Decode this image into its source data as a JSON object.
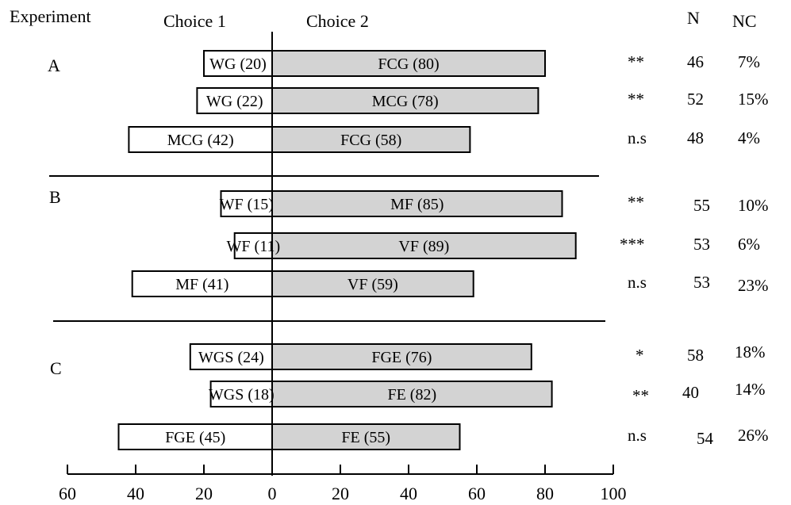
{
  "headers": {
    "experiment": "Experiment",
    "choice1": "Choice 1",
    "choice2": "Choice 2",
    "n": "N",
    "nc": "NC"
  },
  "groups": [
    "A",
    "B",
    "C"
  ],
  "chart_data": {
    "type": "bar",
    "orientation": "horizontal-diverging",
    "xlim": [
      -60,
      100
    ],
    "x_ticks": [
      -60,
      -40,
      -20,
      0,
      20,
      40,
      60,
      80,
      100
    ],
    "x_tick_labels": [
      "60",
      "40",
      "20",
      "0",
      "20",
      "40",
      "60",
      "80",
      "100"
    ],
    "rows": [
      {
        "group": "A",
        "choice1": "WG",
        "choice1_label": "WG (20)",
        "choice1_value": 20,
        "choice2": "FCG",
        "choice2_label": "FCG (80)",
        "choice2_value": 80,
        "significance": "**",
        "n": "46",
        "nc": "7%"
      },
      {
        "group": "A",
        "choice1": "WG",
        "choice1_label": "WG (22)",
        "choice1_value": 22,
        "choice2": "MCG",
        "choice2_label": "MCG (78)",
        "choice2_value": 78,
        "significance": "**",
        "n": "52",
        "nc": "15%"
      },
      {
        "group": "A",
        "choice1": "MCG",
        "choice1_label": "MCG (42)",
        "choice1_value": 42,
        "choice2": "FCG",
        "choice2_label": "FCG (58)",
        "choice2_value": 58,
        "significance": "n.s",
        "n": "48",
        "nc": "4%"
      },
      {
        "group": "B",
        "choice1": "WF",
        "choice1_label": "WF (15)",
        "choice1_value": 15,
        "choice2": "MF",
        "choice2_label": "MF (85)",
        "choice2_value": 85,
        "significance": "**",
        "n": "55",
        "nc": "10%"
      },
      {
        "group": "B",
        "choice1": "WF",
        "choice1_label": "WF (11)",
        "choice1_value": 11,
        "choice2": "VF",
        "choice2_label": "VF (89)",
        "choice2_value": 89,
        "significance": "***",
        "n": "53",
        "nc": "6%"
      },
      {
        "group": "B",
        "choice1": "MF",
        "choice1_label": "MF (41)",
        "choice1_value": 41,
        "choice2": "VF",
        "choice2_label": "VF (59)",
        "choice2_value": 59,
        "significance": "n.s",
        "n": "53",
        "nc": "23%"
      },
      {
        "group": "C",
        "choice1": "WGS",
        "choice1_label": "WGS (24)",
        "choice1_value": 24,
        "choice2": "FGE",
        "choice2_label": "FGE (76)",
        "choice2_value": 76,
        "significance": "*",
        "n": "58",
        "nc": "18%"
      },
      {
        "group": "C",
        "choice1": "WGS",
        "choice1_label": "WGS (18)",
        "choice1_value": 18,
        "choice2": "FE",
        "choice2_label": "FE (82)",
        "choice2_value": 82,
        "significance": "**",
        "n": "40",
        "nc": "14%"
      },
      {
        "group": "C",
        "choice1": "FGE",
        "choice1_label": "FGE (45)",
        "choice1_value": 45,
        "choice2": "FE",
        "choice2_label": "FE (55)",
        "choice2_value": 55,
        "significance": "n.s",
        "n": "54",
        "nc": "26%"
      }
    ],
    "colors": {
      "choice1_fill": "#ffffff",
      "choice2_fill": "#d3d3d3",
      "outline": "#000000"
    }
  }
}
